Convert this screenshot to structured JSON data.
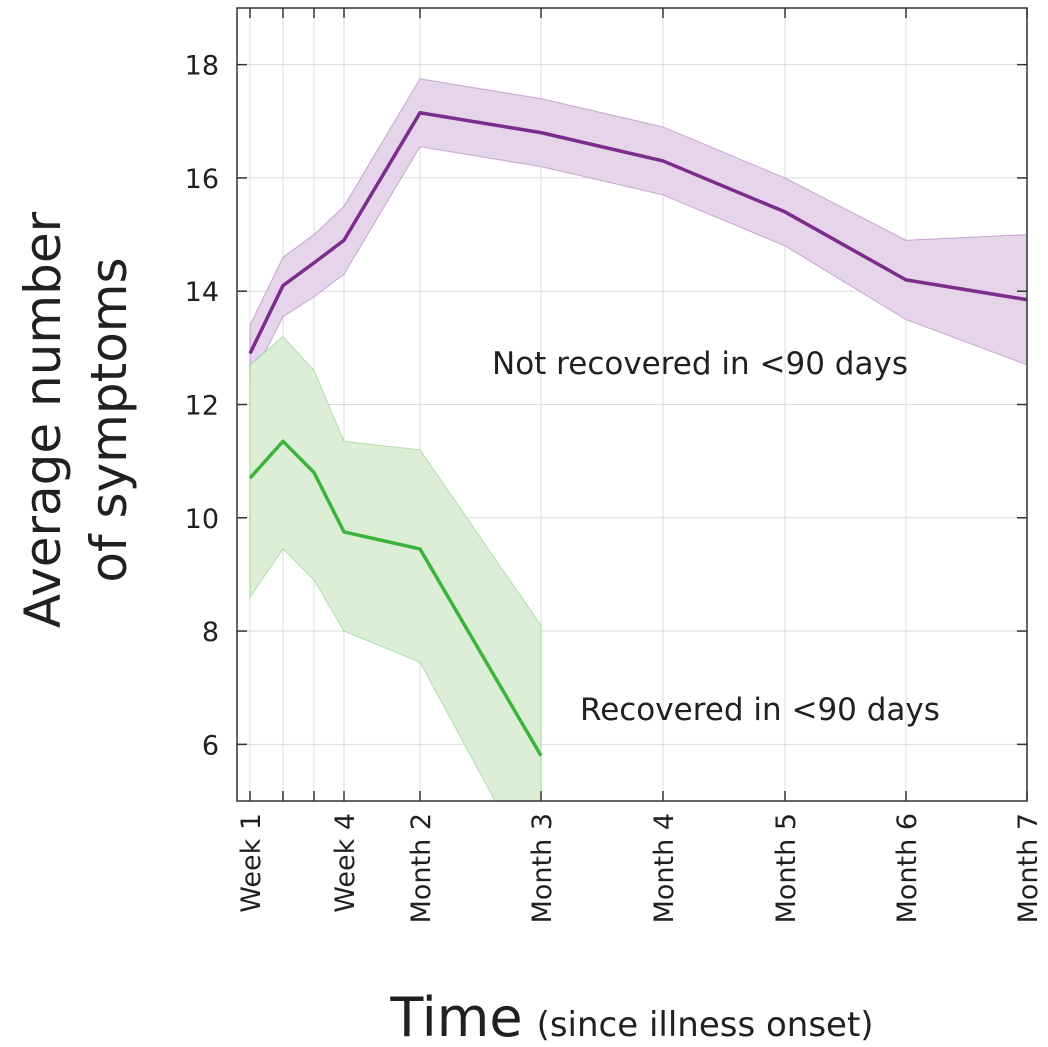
{
  "chart_data": {
    "type": "line",
    "ylabel": [
      "Average number",
      "of symptoms"
    ],
    "xlabel": "Time",
    "xlabel_note": "(since illness onset)",
    "categories": [
      "Week 1",
      null,
      null,
      "Week 4",
      "Month 2",
      "Month 3",
      "Month 4",
      "Month 5",
      "Month 6",
      "Month 7"
    ],
    "series": [
      {
        "name": "Not recovered in <90 days",
        "color": "#7b2c8c",
        "band_color": "#e6d4ea",
        "values": [
          12.9,
          14.1,
          14.5,
          14.9,
          17.15,
          16.8,
          16.3,
          15.4,
          14.2,
          13.85
        ],
        "upper": [
          13.4,
          14.6,
          15.0,
          15.5,
          17.75,
          17.4,
          16.9,
          16.0,
          14.9,
          15.0
        ],
        "lower": [
          12.4,
          13.55,
          13.9,
          14.3,
          16.55,
          16.2,
          15.7,
          14.8,
          13.5,
          12.7
        ]
      },
      {
        "name": "Recovered in <90 days",
        "color": "#3cb43c",
        "band_color": "#dcefd6",
        "values": [
          10.7,
          11.35,
          10.8,
          9.75,
          9.45,
          5.8,
          null,
          null,
          null,
          null
        ],
        "upper": [
          12.7,
          13.2,
          12.6,
          11.35,
          11.2,
          8.1,
          null,
          null,
          null,
          null
        ],
        "lower": [
          8.6,
          9.45,
          8.9,
          8.0,
          7.45,
          3.5,
          null,
          null,
          null,
          null
        ]
      }
    ],
    "ylim": [
      5,
      19
    ],
    "yticks": [
      6,
      8,
      10,
      12,
      14,
      16,
      18
    ],
    "grid": true
  }
}
